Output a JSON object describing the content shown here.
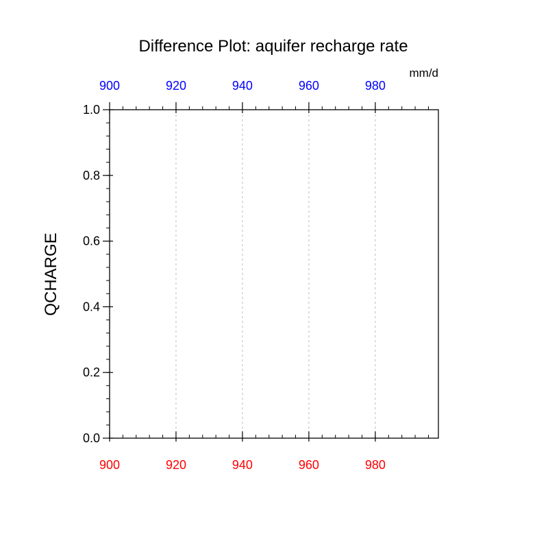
{
  "chart_data": {
    "type": "line",
    "title": "Difference Plot: aquifer recharge rate",
    "units": "mm/d",
    "ylabel": "QCHARGE",
    "xlim": [
      900,
      999
    ],
    "ylim": [
      0,
      1
    ],
    "x_ticks_bottom": [
      900,
      920,
      940,
      960,
      980
    ],
    "x_ticks_top": [
      900,
      920,
      940,
      960,
      980
    ],
    "y_ticks": [
      "0.0",
      "0.2",
      "0.4",
      "0.6",
      "0.8",
      "1.0"
    ],
    "x_minor_step": 4,
    "y_minor_step": 0.04,
    "grid": "vertical-dashed",
    "series": [],
    "colors": {
      "bottom_ticks": "#ff0000",
      "top_ticks": "#0000ff",
      "axis": "#000000",
      "grid": "#bbbbbb"
    }
  }
}
